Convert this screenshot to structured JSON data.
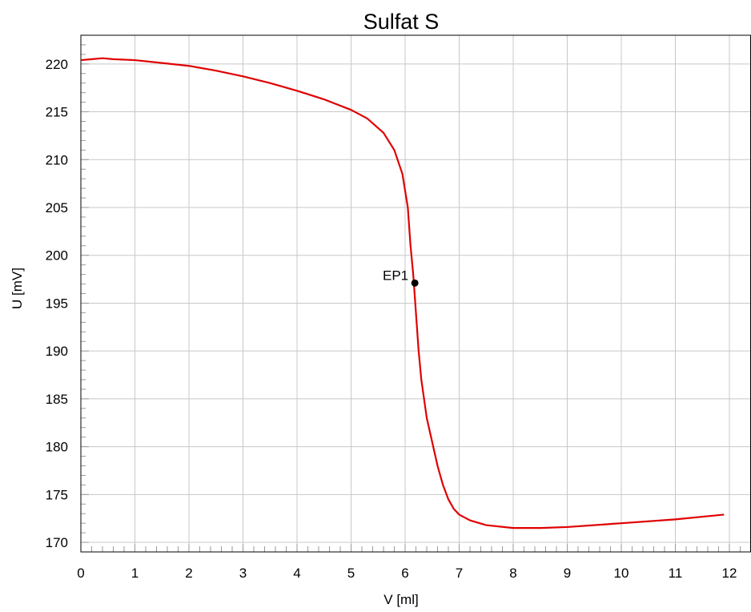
{
  "chart_data": {
    "type": "line",
    "title": "Sulfat S",
    "xlabel": "V [ml]",
    "ylabel": "U [mV]",
    "xlim": [
      0,
      12.4
    ],
    "ylim": [
      169,
      223
    ],
    "xticks": [
      0,
      1,
      2,
      3,
      4,
      5,
      6,
      7,
      8,
      9,
      10,
      11,
      12
    ],
    "yticks": [
      170,
      175,
      180,
      185,
      190,
      195,
      200,
      205,
      210,
      215,
      220
    ],
    "grid": true,
    "legend": "none",
    "series": [
      {
        "color": "#e00000",
        "x": [
          0.0,
          0.2,
          0.4,
          0.6,
          1.0,
          1.5,
          2.0,
          2.5,
          3.0,
          3.5,
          4.0,
          4.5,
          5.0,
          5.3,
          5.6,
          5.8,
          5.95,
          6.05,
          6.1,
          6.15,
          6.2,
          6.25,
          6.3,
          6.4,
          6.5,
          6.6,
          6.7,
          6.8,
          6.9,
          7.0,
          7.2,
          7.5,
          8.0,
          8.5,
          9.0,
          10.0,
          11.0,
          11.9
        ],
        "y": [
          220.4,
          220.5,
          220.6,
          220.5,
          220.4,
          220.1,
          219.8,
          219.3,
          218.7,
          218.0,
          217.2,
          216.3,
          215.2,
          214.3,
          212.8,
          211.0,
          208.5,
          205.0,
          201.0,
          198.0,
          194.0,
          190.0,
          187.0,
          183.0,
          180.5,
          178.0,
          176.0,
          174.5,
          173.5,
          172.9,
          172.3,
          171.8,
          171.5,
          171.5,
          171.6,
          172.0,
          172.4,
          172.9
        ]
      }
    ],
    "annotations": [
      {
        "text": "EP1",
        "x": 6.18,
        "y": 197.1
      }
    ]
  }
}
